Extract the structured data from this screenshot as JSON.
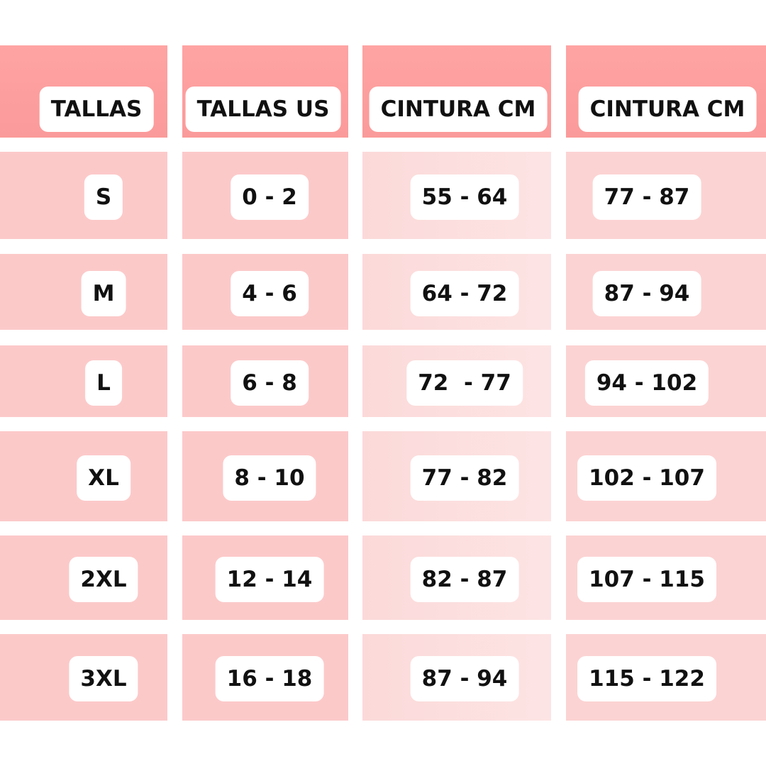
{
  "table": {
    "header": [
      "TALLAS",
      "TALLAS US",
      "CINTURA CM",
      "CINTURA CM"
    ],
    "rows": [
      [
        "S",
        "0 - 2",
        "55 - 64",
        "77 - 87"
      ],
      [
        "M",
        "4 - 6",
        "64 - 72",
        "87 - 94"
      ],
      [
        "L",
        "6 - 8",
        "72  - 77",
        "94 - 102"
      ],
      [
        "XL",
        "8 - 10",
        "77 - 82",
        "102 - 107"
      ],
      [
        "2XL",
        "12 - 14",
        "82 - 87",
        "107 - 115"
      ],
      [
        "3XL",
        "16 - 18",
        "87 - 94",
        "115 - 122"
      ]
    ]
  }
}
